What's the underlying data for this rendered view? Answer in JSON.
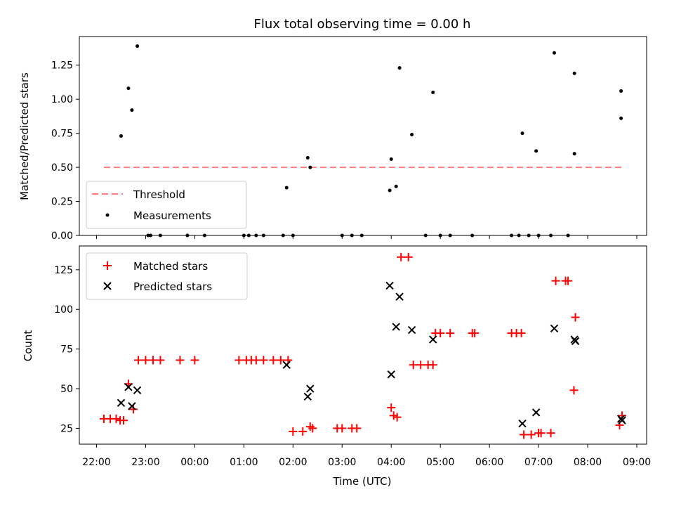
{
  "chart_data": [
    {
      "type": "scatter",
      "title": "Flux total observing time = 0.00 h",
      "ylabel": "Matched/Predicted stars",
      "xlabel": "",
      "ylim": [
        0,
        1.46
      ],
      "yticks": [
        "0.00",
        "0.25",
        "0.50",
        "0.75",
        "1.00",
        "1.25"
      ],
      "legend": [
        "Threshold",
        "Measurements"
      ],
      "legend_location": "lower-left",
      "colors": {
        "threshold": "#ff7f7f",
        "measurements": "#000000"
      },
      "threshold": {
        "name": "Threshold",
        "value": 0.5,
        "x_start": 22.15,
        "x_end": 32.7
      },
      "series": [
        {
          "name": "Measurements",
          "points": [
            [
              22.5,
              0.73
            ],
            [
              22.65,
              1.08
            ],
            [
              22.72,
              0.92
            ],
            [
              22.83,
              1.39
            ],
            [
              23.05,
              0.0
            ],
            [
              23.1,
              0.0
            ],
            [
              23.3,
              0.0
            ],
            [
              23.85,
              0.0
            ],
            [
              24.2,
              0.0
            ],
            [
              25.0,
              0.0
            ],
            [
              25.1,
              0.0
            ],
            [
              25.25,
              0.0
            ],
            [
              25.4,
              0.0
            ],
            [
              25.8,
              0.0
            ],
            [
              26.0,
              0.0
            ],
            [
              25.87,
              0.35
            ],
            [
              26.3,
              0.57
            ],
            [
              26.35,
              0.5
            ],
            [
              27.0,
              0.0
            ],
            [
              27.2,
              0.0
            ],
            [
              27.4,
              0.0
            ],
            [
              27.97,
              0.33
            ],
            [
              28.0,
              0.56
            ],
            [
              28.1,
              0.36
            ],
            [
              28.17,
              1.23
            ],
            [
              28.42,
              0.74
            ],
            [
              28.85,
              1.05
            ],
            [
              28.7,
              0.0
            ],
            [
              29.0,
              0.0
            ],
            [
              29.2,
              0.0
            ],
            [
              29.65,
              0.0
            ],
            [
              30.45,
              0.0
            ],
            [
              30.6,
              0.0
            ],
            [
              30.8,
              0.0
            ],
            [
              30.67,
              0.75
            ],
            [
              30.95,
              0.62
            ],
            [
              31.0,
              0.0
            ],
            [
              31.25,
              0.0
            ],
            [
              31.6,
              0.0
            ],
            [
              31.32,
              1.34
            ],
            [
              31.73,
              1.19
            ],
            [
              31.73,
              0.6
            ],
            [
              32.68,
              1.06
            ],
            [
              32.68,
              0.86
            ]
          ]
        }
      ]
    },
    {
      "type": "scatter",
      "title": "",
      "xlabel": "Time (UTC)",
      "ylabel": "Count",
      "ylim": [
        15,
        140
      ],
      "xlim": [
        21.65,
        33.2
      ],
      "xticks": [
        "22:00",
        "23:00",
        "00:00",
        "01:00",
        "02:00",
        "03:00",
        "04:00",
        "05:00",
        "06:00",
        "07:00",
        "08:00",
        "09:00"
      ],
      "yticks": [
        "25",
        "50",
        "75",
        "100",
        "125"
      ],
      "legend": [
        "Matched stars",
        "Predicted stars"
      ],
      "legend_location": "upper-left",
      "colors": {
        "matched": "#ff0000",
        "predicted": "#000000"
      },
      "series": [
        {
          "name": "Matched stars",
          "points": [
            [
              22.15,
              31
            ],
            [
              22.28,
              31
            ],
            [
              22.4,
              31
            ],
            [
              22.48,
              30
            ],
            [
              22.55,
              30
            ],
            [
              22.65,
              53
            ],
            [
              22.75,
              37
            ],
            [
              22.85,
              68
            ],
            [
              23.0,
              68
            ],
            [
              23.15,
              68
            ],
            [
              23.3,
              68
            ],
            [
              23.7,
              68
            ],
            [
              24.0,
              68
            ],
            [
              24.9,
              68
            ],
            [
              25.05,
              68
            ],
            [
              25.15,
              68
            ],
            [
              25.25,
              68
            ],
            [
              25.4,
              68
            ],
            [
              25.6,
              68
            ],
            [
              25.75,
              68
            ],
            [
              25.9,
              68
            ],
            [
              26.0,
              23
            ],
            [
              26.2,
              23
            ],
            [
              26.35,
              26
            ],
            [
              26.4,
              25
            ],
            [
              26.9,
              25
            ],
            [
              27.0,
              25
            ],
            [
              27.2,
              25
            ],
            [
              27.3,
              25
            ],
            [
              28.0,
              38
            ],
            [
              28.05,
              33
            ],
            [
              28.12,
              32
            ],
            [
              28.2,
              133
            ],
            [
              28.35,
              133
            ],
            [
              28.45,
              65
            ],
            [
              28.6,
              65
            ],
            [
              28.75,
              65
            ],
            [
              28.85,
              65
            ],
            [
              28.9,
              85
            ],
            [
              29.0,
              85
            ],
            [
              29.2,
              85
            ],
            [
              29.65,
              85
            ],
            [
              29.7,
              85
            ],
            [
              30.45,
              85
            ],
            [
              30.55,
              85
            ],
            [
              30.65,
              85
            ],
            [
              30.7,
              21
            ],
            [
              30.85,
              21
            ],
            [
              31.0,
              22
            ],
            [
              31.05,
              22
            ],
            [
              31.25,
              22
            ],
            [
              31.35,
              118
            ],
            [
              31.55,
              118
            ],
            [
              31.6,
              118
            ],
            [
              31.72,
              49
            ],
            [
              31.75,
              95
            ],
            [
              32.65,
              27
            ],
            [
              32.7,
              33
            ]
          ]
        },
        {
          "name": "Predicted stars",
          "points": [
            [
              22.5,
              41
            ],
            [
              22.65,
              51
            ],
            [
              22.72,
              39
            ],
            [
              22.83,
              49
            ],
            [
              25.87,
              65
            ],
            [
              26.3,
              45
            ],
            [
              26.35,
              50
            ],
            [
              27.97,
              115
            ],
            [
              28.0,
              59
            ],
            [
              28.1,
              89
            ],
            [
              28.17,
              108
            ],
            [
              28.42,
              87
            ],
            [
              28.85,
              81
            ],
            [
              30.67,
              28
            ],
            [
              30.95,
              35
            ],
            [
              31.32,
              88
            ],
            [
              31.73,
              81
            ],
            [
              31.75,
              80
            ],
            [
              32.68,
              31
            ],
            [
              32.7,
              30
            ]
          ]
        }
      ]
    }
  ]
}
